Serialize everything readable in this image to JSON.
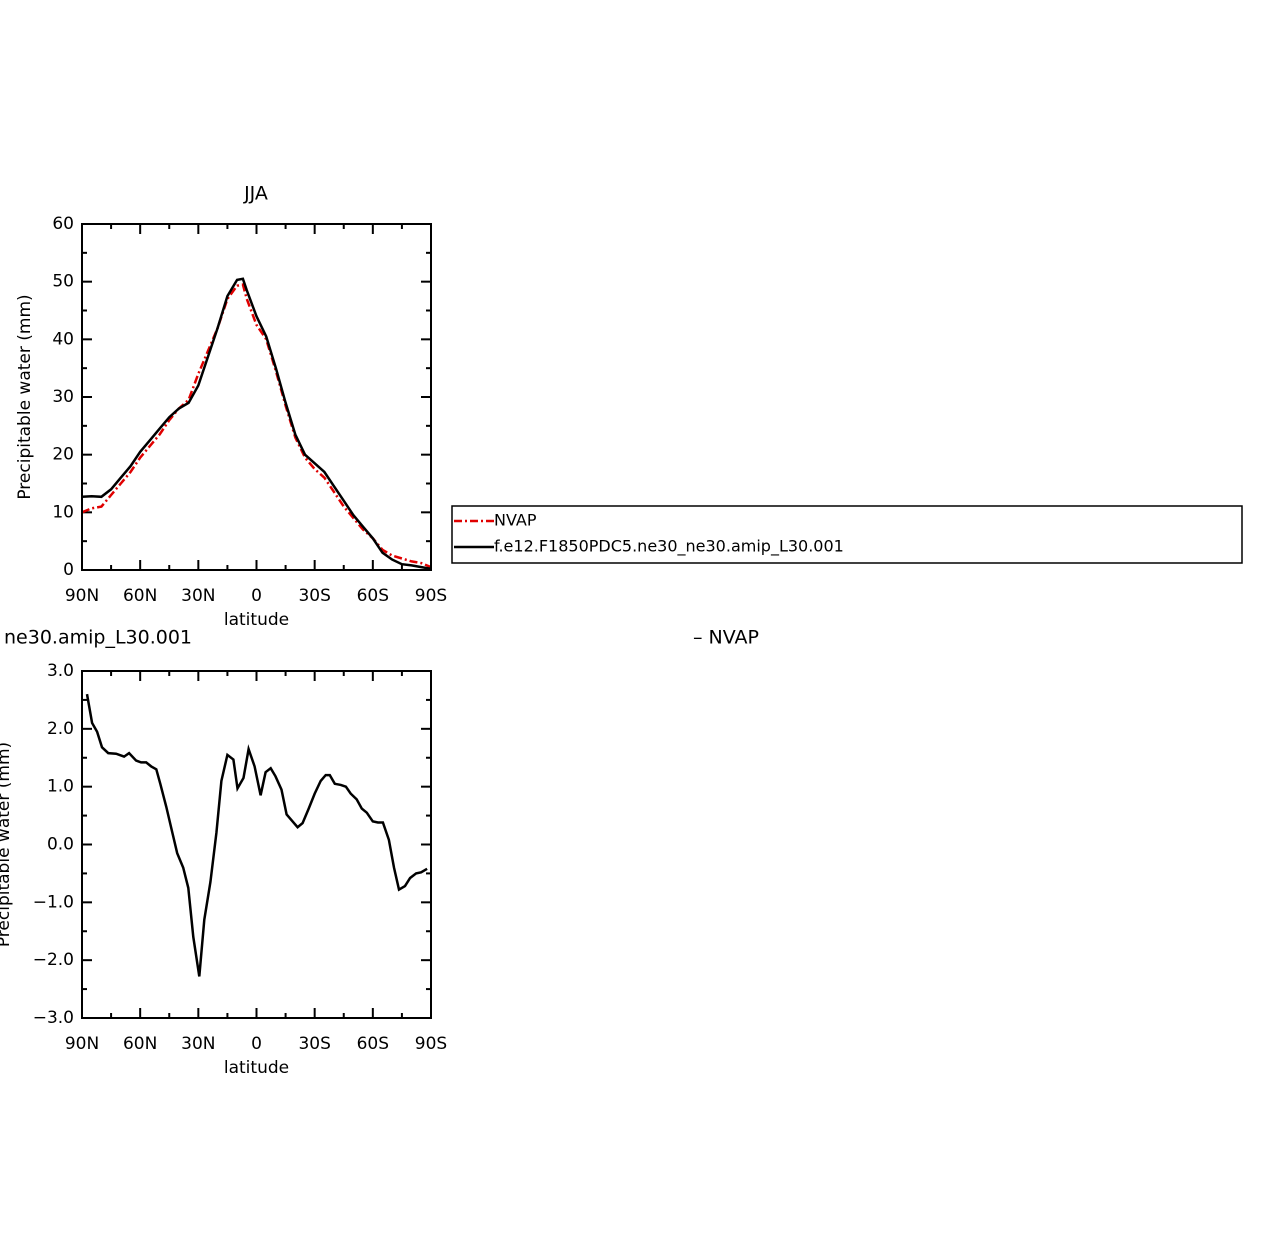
{
  "chart_data": [
    {
      "type": "line",
      "title": "JJA",
      "xlabel": "latitude",
      "ylabel": "Precipitable water (mm)",
      "x": [
        90,
        85,
        80,
        75,
        70,
        65,
        60,
        55,
        50,
        45,
        40,
        35,
        30,
        25,
        20,
        15,
        10,
        7,
        5,
        0,
        -5,
        -10,
        -15,
        -20,
        -25,
        -30,
        -35,
        -40,
        -45,
        -50,
        -55,
        -60,
        -65,
        -70,
        -75,
        -80,
        -85,
        -90
      ],
      "series": [
        {
          "name": "NVAP",
          "color": "#e00000",
          "dash": true,
          "values": [
            10,
            10.7,
            11,
            13,
            15,
            17,
            19.5,
            21.5,
            23.5,
            26,
            28,
            29.5,
            34,
            38,
            42,
            47,
            49.3,
            49.5,
            47,
            42.5,
            40,
            34.5,
            28.5,
            23,
            19.5,
            17.5,
            16,
            13.5,
            11,
            9,
            7,
            5.5,
            3.5,
            2.5,
            2,
            1.5,
            1.2,
            0.5
          ]
        },
        {
          "name": "f.e12.F1850PDC5.ne30_ne30.amip_L30.001",
          "color": "#000000",
          "dash": false,
          "values": [
            12.7,
            12.8,
            12.7,
            14,
            16,
            18,
            20.5,
            22.5,
            24.5,
            26.5,
            28,
            29,
            32,
            37,
            42,
            47.5,
            50.3,
            50.5,
            48.5,
            44,
            40.5,
            35,
            29,
            23.5,
            20,
            18.5,
            17,
            14.5,
            12,
            9.5,
            7.5,
            5.5,
            3,
            1.8,
            1,
            0.8,
            0.5,
            0.2
          ]
        }
      ],
      "xlim": [
        90,
        -90
      ],
      "xticks": [
        {
          "value": 90,
          "label": "90N"
        },
        {
          "value": 60,
          "label": "60N"
        },
        {
          "value": 30,
          "label": "30N"
        },
        0,
        {
          "value": -30,
          "label": "30S"
        },
        {
          "value": -60,
          "label": "60S"
        },
        {
          "value": -90,
          "label": "90S"
        }
      ],
      "xminorticks": [
        75,
        45,
        15,
        -15,
        -45,
        -75
      ],
      "ylim": [
        0,
        60
      ],
      "yticks": [
        0,
        10,
        20,
        30,
        40,
        50,
        60
      ],
      "yminorticks": [
        5,
        15,
        25,
        35,
        45,
        55
      ],
      "legend": "right"
    },
    {
      "type": "line",
      "title": "ne30.amip_L30.001",
      "right_string": "– NVAP",
      "xlabel": "latitude",
      "ylabel": "Precipitable water (mm)",
      "x": [
        87.4,
        84.8,
        82.2,
        79.7,
        76.5,
        72.4,
        68.3,
        65.7,
        62.1,
        59.5,
        56.9,
        54.3,
        51.7,
        49.6,
        46.5,
        43.4,
        40.9,
        37.8,
        35.2,
        32.6,
        29.5,
        26.9,
        23.8,
        20.7,
        18.1,
        15.0,
        11.9,
        9.8,
        6.7,
        4.1,
        1.0,
        -2.1,
        -4.7,
        -7.3,
        -9.8,
        -12.9,
        -15.5,
        -18.6,
        -21.2,
        -23.8,
        -26.9,
        -30.0,
        -33.1,
        -35.7,
        -37.8,
        -40.4,
        -43.5,
        -46.1,
        -48.6,
        -51.7,
        -54.3,
        -56.9,
        -60.0,
        -62.6,
        -65.2,
        -68.3,
        -70.9,
        -73.5,
        -76.6,
        -79.2,
        -82.3,
        -84.9,
        -88.0
      ],
      "series": [
        {
          "color": "#000000",
          "dash": false,
          "values": [
            2.6,
            2.1,
            1.95,
            1.68,
            1.58,
            1.57,
            1.52,
            1.58,
            1.45,
            1.42,
            1.42,
            1.35,
            1.3,
            1.05,
            0.65,
            0.2,
            -0.15,
            -0.4,
            -0.75,
            -1.6,
            -2.28,
            -1.3,
            -0.65,
            0.2,
            1.1,
            1.55,
            1.47,
            0.97,
            1.15,
            1.65,
            1.35,
            0.85,
            1.25,
            1.32,
            1.18,
            0.95,
            0.52,
            0.4,
            0.3,
            0.37,
            0.62,
            0.88,
            1.1,
            1.2,
            1.2,
            1.05,
            1.03,
            1.0,
            0.88,
            0.78,
            0.62,
            0.55,
            0.4,
            0.38,
            0.38,
            0.08,
            -0.4,
            -0.78,
            -0.72,
            -0.58,
            -0.5,
            -0.48,
            -0.42
          ]
        }
      ],
      "xlim": [
        90,
        -90
      ],
      "xticks": [
        {
          "value": 90,
          "label": "90N"
        },
        {
          "value": 60,
          "label": "60N"
        },
        {
          "value": 30,
          "label": "30N"
        },
        0,
        {
          "value": -30,
          "label": "30S"
        },
        {
          "value": -60,
          "label": "60S"
        },
        {
          "value": -90,
          "label": "90S"
        }
      ],
      "xminorticks": [
        75,
        45,
        15,
        -15,
        -45,
        -75
      ],
      "ylim": [
        -3,
        3
      ],
      "yticks": [
        {
          "value": -3,
          "label": "−3.0"
        },
        {
          "value": -2,
          "label": "−2.0"
        },
        {
          "value": -1,
          "label": "−1.0"
        },
        {
          "value": 0,
          "label": "0.0"
        },
        {
          "value": 1,
          "label": "1.0"
        },
        {
          "value": 2,
          "label": "2.0"
        },
        {
          "value": 3,
          "label": "3.0"
        }
      ],
      "yminorticks": [
        -2.5,
        -1.5,
        -0.5,
        0.5,
        1.5,
        2.5
      ]
    }
  ]
}
